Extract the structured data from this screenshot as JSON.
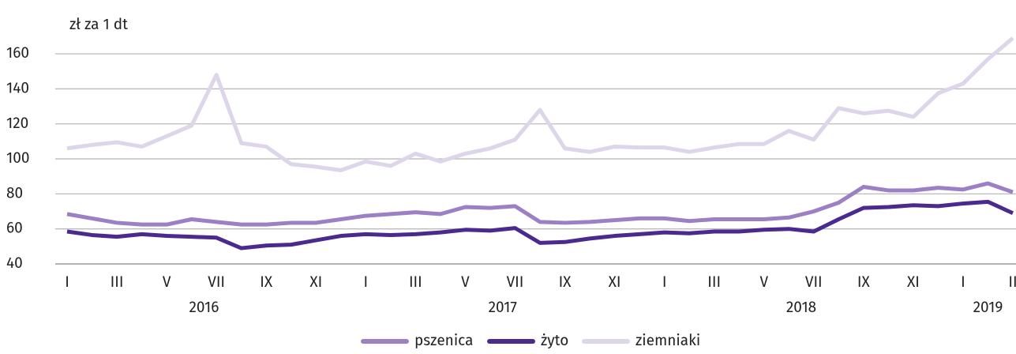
{
  "chart_data": {
    "type": "line",
    "axis_label": "zł za 1 dt",
    "categories": [
      "I",
      null,
      "III",
      null,
      "V",
      null,
      "VII",
      null,
      "IX",
      null,
      "XI",
      null,
      "I",
      null,
      "III",
      null,
      "V",
      null,
      "VII",
      null,
      "IX",
      null,
      "XI",
      null,
      "I",
      null,
      "III",
      null,
      "V",
      null,
      "VII",
      null,
      "IX",
      null,
      "XI",
      null,
      "I",
      null,
      "II"
    ],
    "year_groups": [
      {
        "label": "2016",
        "count": 12
      },
      {
        "label": "2017",
        "count": 12
      },
      {
        "label": "2018",
        "count": 12
      },
      {
        "label": "2019",
        "count": 3
      }
    ],
    "series": [
      {
        "name": "pszenica",
        "color": "#9b80c6",
        "values": [
          68.5,
          66,
          63.5,
          62.5,
          62.5,
          65.5,
          64,
          62.5,
          62.5,
          63.5,
          63.5,
          65.5,
          67.5,
          68.5,
          69.5,
          68.5,
          72.5,
          72,
          73,
          64,
          63.5,
          64,
          65,
          66,
          66,
          64.5,
          65.5,
          65.5,
          65.5,
          66.5,
          70,
          75,
          84,
          82,
          82,
          83.5,
          82.5,
          86,
          81
        ]
      },
      {
        "name": "żyto",
        "color": "#4a2a8e",
        "values": [
          58.5,
          56.5,
          55.5,
          57,
          56,
          55.5,
          55,
          49,
          50.5,
          51,
          53.5,
          56,
          57,
          56.5,
          57,
          58,
          59.5,
          59,
          60.5,
          52,
          52.5,
          54.5,
          56,
          57,
          58,
          57.5,
          58.5,
          58.5,
          59.5,
          60,
          58.5,
          65.5,
          72,
          72.5,
          73.5,
          73,
          74.5,
          75.5,
          69
        ]
      },
      {
        "name": "ziemniaki",
        "color": "#ddd6eb",
        "values": [
          106,
          108,
          109.5,
          107,
          113,
          119,
          148,
          109,
          107,
          97,
          95.5,
          93.5,
          98.5,
          96,
          103,
          98.5,
          103,
          106,
          111,
          128,
          106,
          104,
          107,
          106.5,
          106.5,
          104,
          106.5,
          108.5,
          108.5,
          116,
          111,
          129,
          126,
          127.5,
          124,
          137.5,
          143,
          157,
          169
        ]
      }
    ],
    "ylim": [
      40,
      170
    ],
    "yticks": [
      40,
      60,
      80,
      100,
      120,
      140,
      160
    ],
    "grid": true
  }
}
